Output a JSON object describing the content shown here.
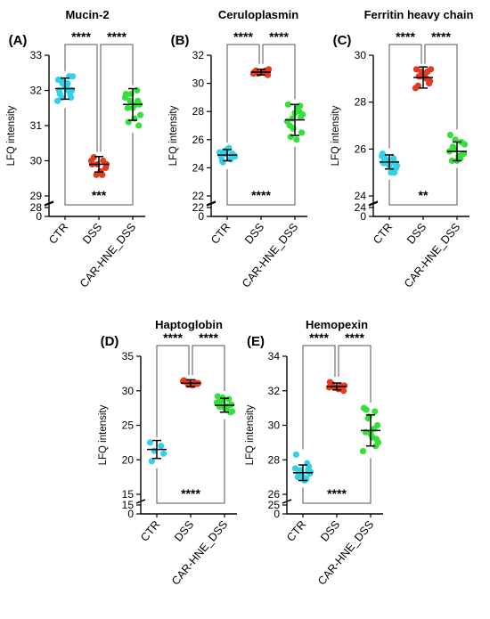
{
  "chart_data": [
    {
      "type": "scatter",
      "panel_label": "(A)",
      "title": "Mucin-2",
      "ylabel": "LFQ intensity",
      "categories": [
        "CTR",
        "DSS",
        "CAR-HNE_DSS"
      ],
      "colors": [
        "#33d1e6",
        "#e23b1f",
        "#35e03a"
      ],
      "ylim": [
        29,
        33
      ],
      "yticks": [
        29,
        30,
        31,
        32,
        33
      ],
      "lower_ticks": [
        28,
        0
      ],
      "mean": [
        32.05,
        29.9,
        31.6
      ],
      "sd": [
        0.3,
        0.22,
        0.45
      ],
      "points": [
        [
          32.3,
          32.4,
          32.2,
          32.0,
          31.9,
          32.1,
          32.4,
          31.7,
          32.0,
          32.2,
          31.8,
          32.3,
          32.1,
          31.9,
          32.0,
          32.2,
          31.8
        ],
        [
          29.9,
          30.0,
          29.6,
          29.8,
          30.1,
          29.7,
          29.9,
          30.0,
          29.6,
          29.9
        ],
        [
          31.9,
          32.0,
          31.7,
          31.6,
          31.5,
          31.2,
          31.3,
          31.8,
          31.6,
          31.9,
          31.0,
          31.1,
          31.5,
          31.7
        ]
      ],
      "significance": [
        {
          "from": 0,
          "to": 1,
          "label": "****",
          "position": "top"
        },
        {
          "from": 1,
          "to": 2,
          "label": "****",
          "position": "top"
        },
        {
          "from": 0,
          "to": 2,
          "label": "***",
          "position": "bottom"
        }
      ]
    },
    {
      "type": "scatter",
      "panel_label": "(B)",
      "title": "Ceruloplasmin",
      "ylabel": "LFQ intensity",
      "categories": [
        "CTR",
        "DSS",
        "CAR-HNE_DSS"
      ],
      "colors": [
        "#33d1e6",
        "#e23b1f",
        "#35e03a"
      ],
      "ylim": [
        22,
        32
      ],
      "yticks": [
        22,
        24,
        26,
        28,
        30,
        32
      ],
      "lower_ticks": [
        22,
        0
      ],
      "mean": [
        24.9,
        30.8,
        27.4
      ],
      "sd": [
        0.4,
        0.2,
        1.1
      ],
      "points": [
        [
          25.0,
          24.7,
          25.2,
          24.9,
          24.5,
          25.4,
          24.8,
          25.1,
          24.6,
          25.0,
          24.9,
          24.4,
          25.3,
          25.0,
          24.8
        ],
        [
          30.8,
          30.9,
          30.7,
          30.6,
          30.9,
          30.8,
          31.0,
          30.7,
          30.8
        ],
        [
          28.5,
          28.0,
          27.5,
          26.5,
          27.0,
          26.0,
          27.8,
          27.3,
          28.3,
          26.8,
          27.6,
          26.2,
          27.9,
          28.4
        ]
      ],
      "significance": [
        {
          "from": 0,
          "to": 1,
          "label": "****",
          "position": "top"
        },
        {
          "from": 1,
          "to": 2,
          "label": "****",
          "position": "top"
        },
        {
          "from": 0,
          "to": 2,
          "label": "****",
          "position": "bottom"
        }
      ]
    },
    {
      "type": "scatter",
      "panel_label": "(C)",
      "title": "Ferritin heavy chain",
      "ylabel": "LFQ intensity",
      "categories": [
        "CTR",
        "DSS",
        "CAR-HNE_DSS"
      ],
      "colors": [
        "#33d1e6",
        "#e23b1f",
        "#35e03a"
      ],
      "ylim": [
        24,
        30
      ],
      "yticks": [
        24,
        26,
        28,
        30
      ],
      "lower_ticks": [
        24,
        0
      ],
      "mean": [
        25.45,
        29.05,
        25.9
      ],
      "sd": [
        0.3,
        0.45,
        0.4
      ],
      "points": [
        [
          25.8,
          25.6,
          25.4,
          25.2,
          25.5,
          25.0,
          25.3,
          25.7,
          25.1,
          25.5,
          25.4,
          25.6,
          25.3,
          25.0,
          25.4
        ],
        [
          29.4,
          29.3,
          29.1,
          28.9,
          28.7,
          29.2,
          29.4,
          28.6,
          29.0,
          29.3,
          28.8,
          29.1
        ],
        [
          26.6,
          26.3,
          26.0,
          25.8,
          25.5,
          25.7,
          26.2,
          25.9,
          25.6,
          26.4,
          25.8,
          26.1,
          25.5
        ]
      ],
      "significance": [
        {
          "from": 0,
          "to": 1,
          "label": "****",
          "position": "top"
        },
        {
          "from": 1,
          "to": 2,
          "label": "****",
          "position": "top"
        },
        {
          "from": 0,
          "to": 2,
          "label": "**",
          "position": "bottom"
        }
      ]
    },
    {
      "type": "scatter",
      "panel_label": "(D)",
      "title": "Haptoglobin",
      "ylabel": "LFQ intensity",
      "categories": [
        "CTR",
        "DSS",
        "CAR-HNE_DSS"
      ],
      "colors": [
        "#33d1e6",
        "#e23b1f",
        "#35e03a"
      ],
      "ylim": [
        15,
        35
      ],
      "yticks": [
        15,
        20,
        25,
        30,
        35
      ],
      "lower_ticks": [
        15,
        0
      ],
      "mean": [
        21.5,
        31.1,
        27.9
      ],
      "sd": [
        1.3,
        0.5,
        1.0
      ],
      "points": [
        [
          22.5,
          22.0,
          21.3,
          20.9,
          19.8
        ],
        [
          31.5,
          31.2,
          30.9,
          31.0,
          31.3,
          30.8,
          31.1,
          31.4,
          30.9,
          31.2
        ],
        [
          29.2,
          28.8,
          28.5,
          28.0,
          27.7,
          27.3,
          27.0,
          28.3,
          27.8,
          29.0,
          26.9,
          28.6,
          27.5
        ]
      ],
      "significance": [
        {
          "from": 0,
          "to": 1,
          "label": "****",
          "position": "top"
        },
        {
          "from": 1,
          "to": 2,
          "label": "****",
          "position": "top"
        },
        {
          "from": 0,
          "to": 2,
          "label": "****",
          "position": "bottom"
        }
      ]
    },
    {
      "type": "scatter",
      "panel_label": "(E)",
      "title": "Hemopexin",
      "ylabel": "LFQ intensity",
      "categories": [
        "CTR",
        "DSS",
        "CAR-HNE_DSS"
      ],
      "colors": [
        "#33d1e6",
        "#e23b1f",
        "#35e03a"
      ],
      "ylim": [
        26,
        34
      ],
      "yticks": [
        26,
        28,
        30,
        32,
        34
      ],
      "lower_ticks": [
        25,
        0
      ],
      "mean": [
        27.25,
        32.25,
        29.7
      ],
      "sd": [
        0.45,
        0.2,
        0.9
      ],
      "points": [
        [
          28.3,
          27.8,
          27.4,
          27.2,
          27.0,
          26.8,
          27.3,
          27.5,
          26.9,
          27.1,
          27.6,
          27.2,
          27.0,
          27.4
        ],
        [
          32.5,
          32.3,
          32.2,
          32.0,
          32.4,
          32.1,
          32.3,
          32.2
        ],
        [
          31.0,
          30.8,
          30.4,
          30.0,
          29.6,
          29.3,
          29.0,
          28.5,
          29.8,
          30.5,
          29.2,
          30.9,
          29.5,
          28.8
        ]
      ],
      "significance": [
        {
          "from": 0,
          "to": 1,
          "label": "****",
          "position": "top"
        },
        {
          "from": 1,
          "to": 2,
          "label": "****",
          "position": "top"
        },
        {
          "from": 0,
          "to": 2,
          "label": "****",
          "position": "bottom"
        }
      ]
    }
  ]
}
